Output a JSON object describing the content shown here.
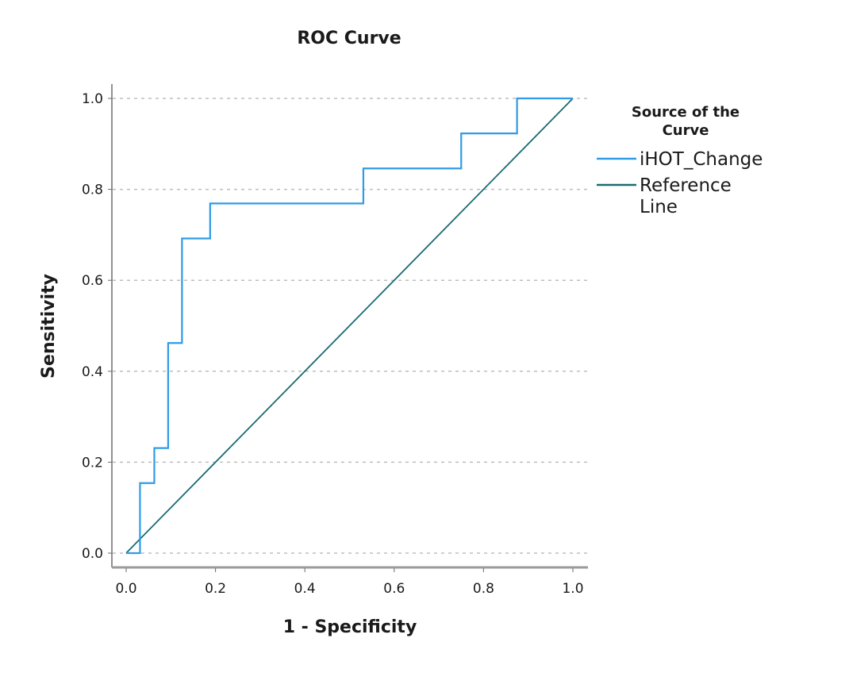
{
  "chart_data": {
    "type": "line",
    "title": "ROC Curve",
    "xlabel": "1 - Specificity",
    "ylabel": "Sensitivity",
    "xlim": [
      0,
      1
    ],
    "ylim": [
      0,
      1
    ],
    "x_ticks": [
      "0.0",
      "0.2",
      "0.4",
      "0.6",
      "0.8",
      "1.0"
    ],
    "y_ticks": [
      "0.0",
      "0.2",
      "0.4",
      "0.6",
      "0.8",
      "1.0"
    ],
    "grid": "horizontal-dashed",
    "legend": {
      "title_lines": [
        "Source of the",
        "Curve"
      ],
      "placement": "right",
      "entries": [
        {
          "label_lines": [
            "iHOT_Change"
          ],
          "color": "#2f9be6"
        },
        {
          "label_lines": [
            "Reference",
            "Line"
          ],
          "color": "#1b6b73"
        }
      ]
    },
    "series": [
      {
        "name": "iHOT_Change",
        "color": "#2f9be6",
        "step": true,
        "points": [
          [
            0.0,
            0.0
          ],
          [
            0.031,
            0.0
          ],
          [
            0.031,
            0.154
          ],
          [
            0.063,
            0.154
          ],
          [
            0.063,
            0.231
          ],
          [
            0.094,
            0.231
          ],
          [
            0.094,
            0.462
          ],
          [
            0.125,
            0.462
          ],
          [
            0.125,
            0.692
          ],
          [
            0.188,
            0.692
          ],
          [
            0.188,
            0.769
          ],
          [
            0.531,
            0.769
          ],
          [
            0.531,
            0.846
          ],
          [
            0.75,
            0.846
          ],
          [
            0.75,
            0.923
          ],
          [
            0.875,
            0.923
          ],
          [
            0.875,
            1.0
          ],
          [
            1.0,
            1.0
          ]
        ]
      },
      {
        "name": "Reference Line",
        "color": "#1b6b73",
        "points": [
          [
            0.0,
            0.0
          ],
          [
            1.0,
            1.0
          ]
        ]
      }
    ]
  }
}
